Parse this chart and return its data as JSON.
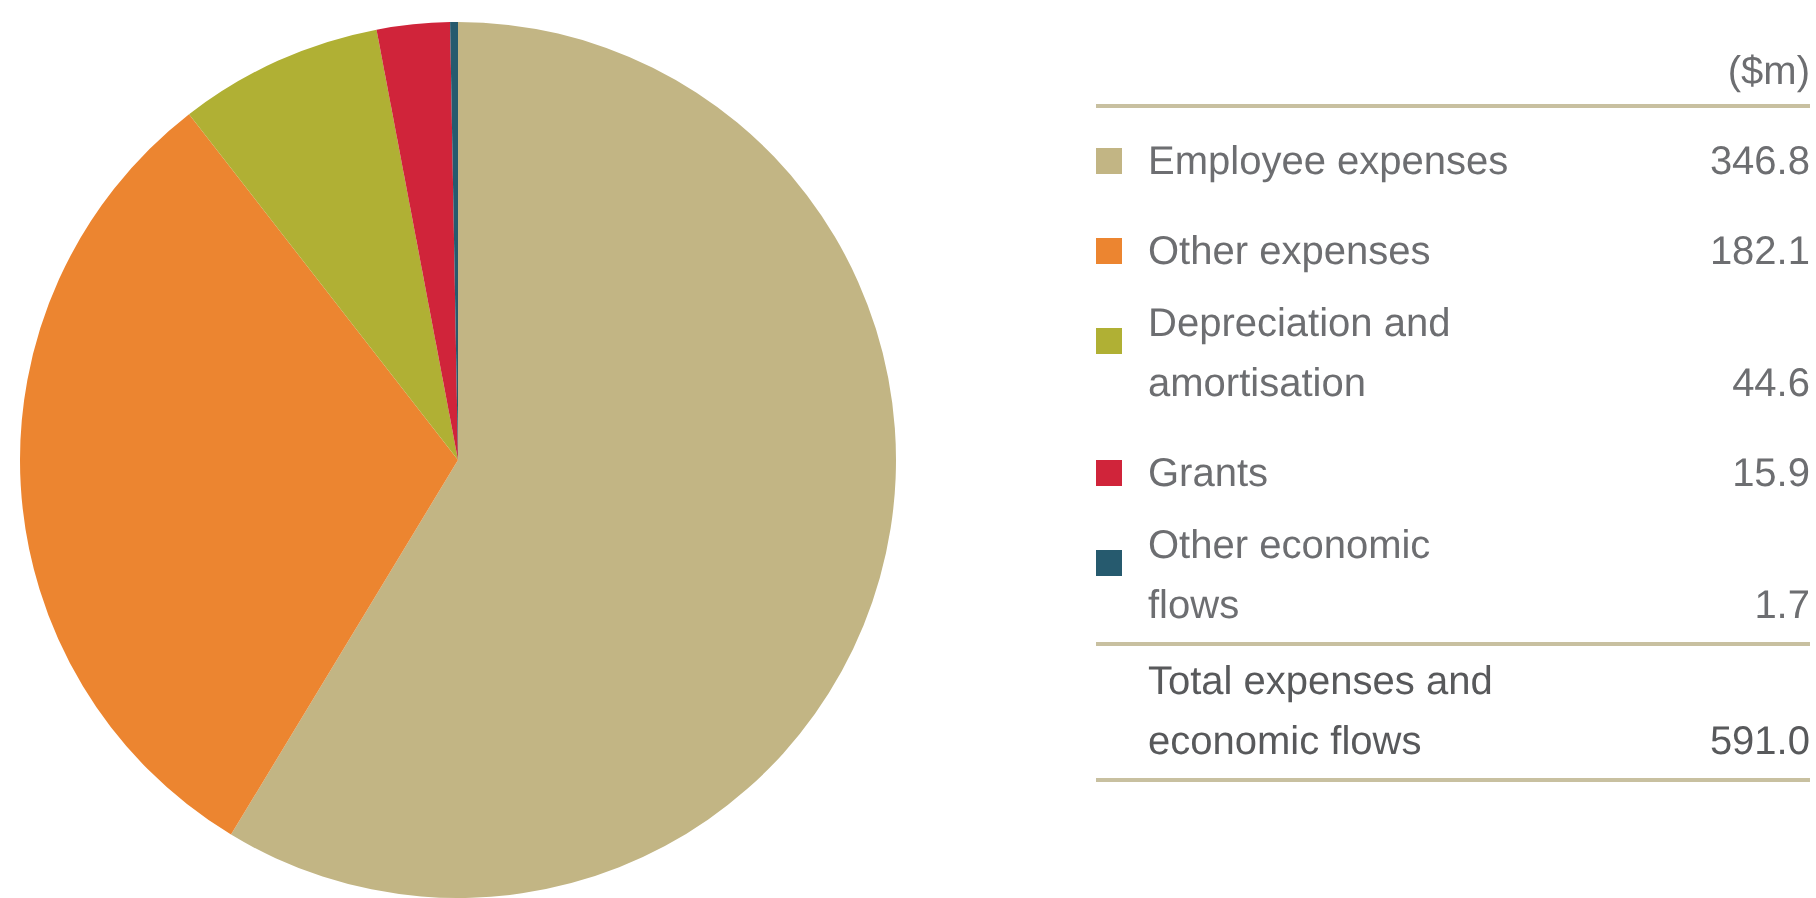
{
  "chart_data": {
    "type": "pie",
    "legend_title": "($m)",
    "legend": "right",
    "data_labels": true,
    "categories": [
      "Employee expenses",
      "Other expenses",
      "Depreciation and amortisation",
      "Grants",
      "Other economic flows"
    ],
    "values": [
      346.8,
      182.1,
      44.6,
      15.9,
      1.7
    ],
    "colors": [
      "#c2b584",
      "#ec8530",
      "#b0b034",
      "#d0243a",
      "#265a6e"
    ],
    "annotations": [
      "Total expenses and economic flows",
      "591.0"
    ]
  }
}
